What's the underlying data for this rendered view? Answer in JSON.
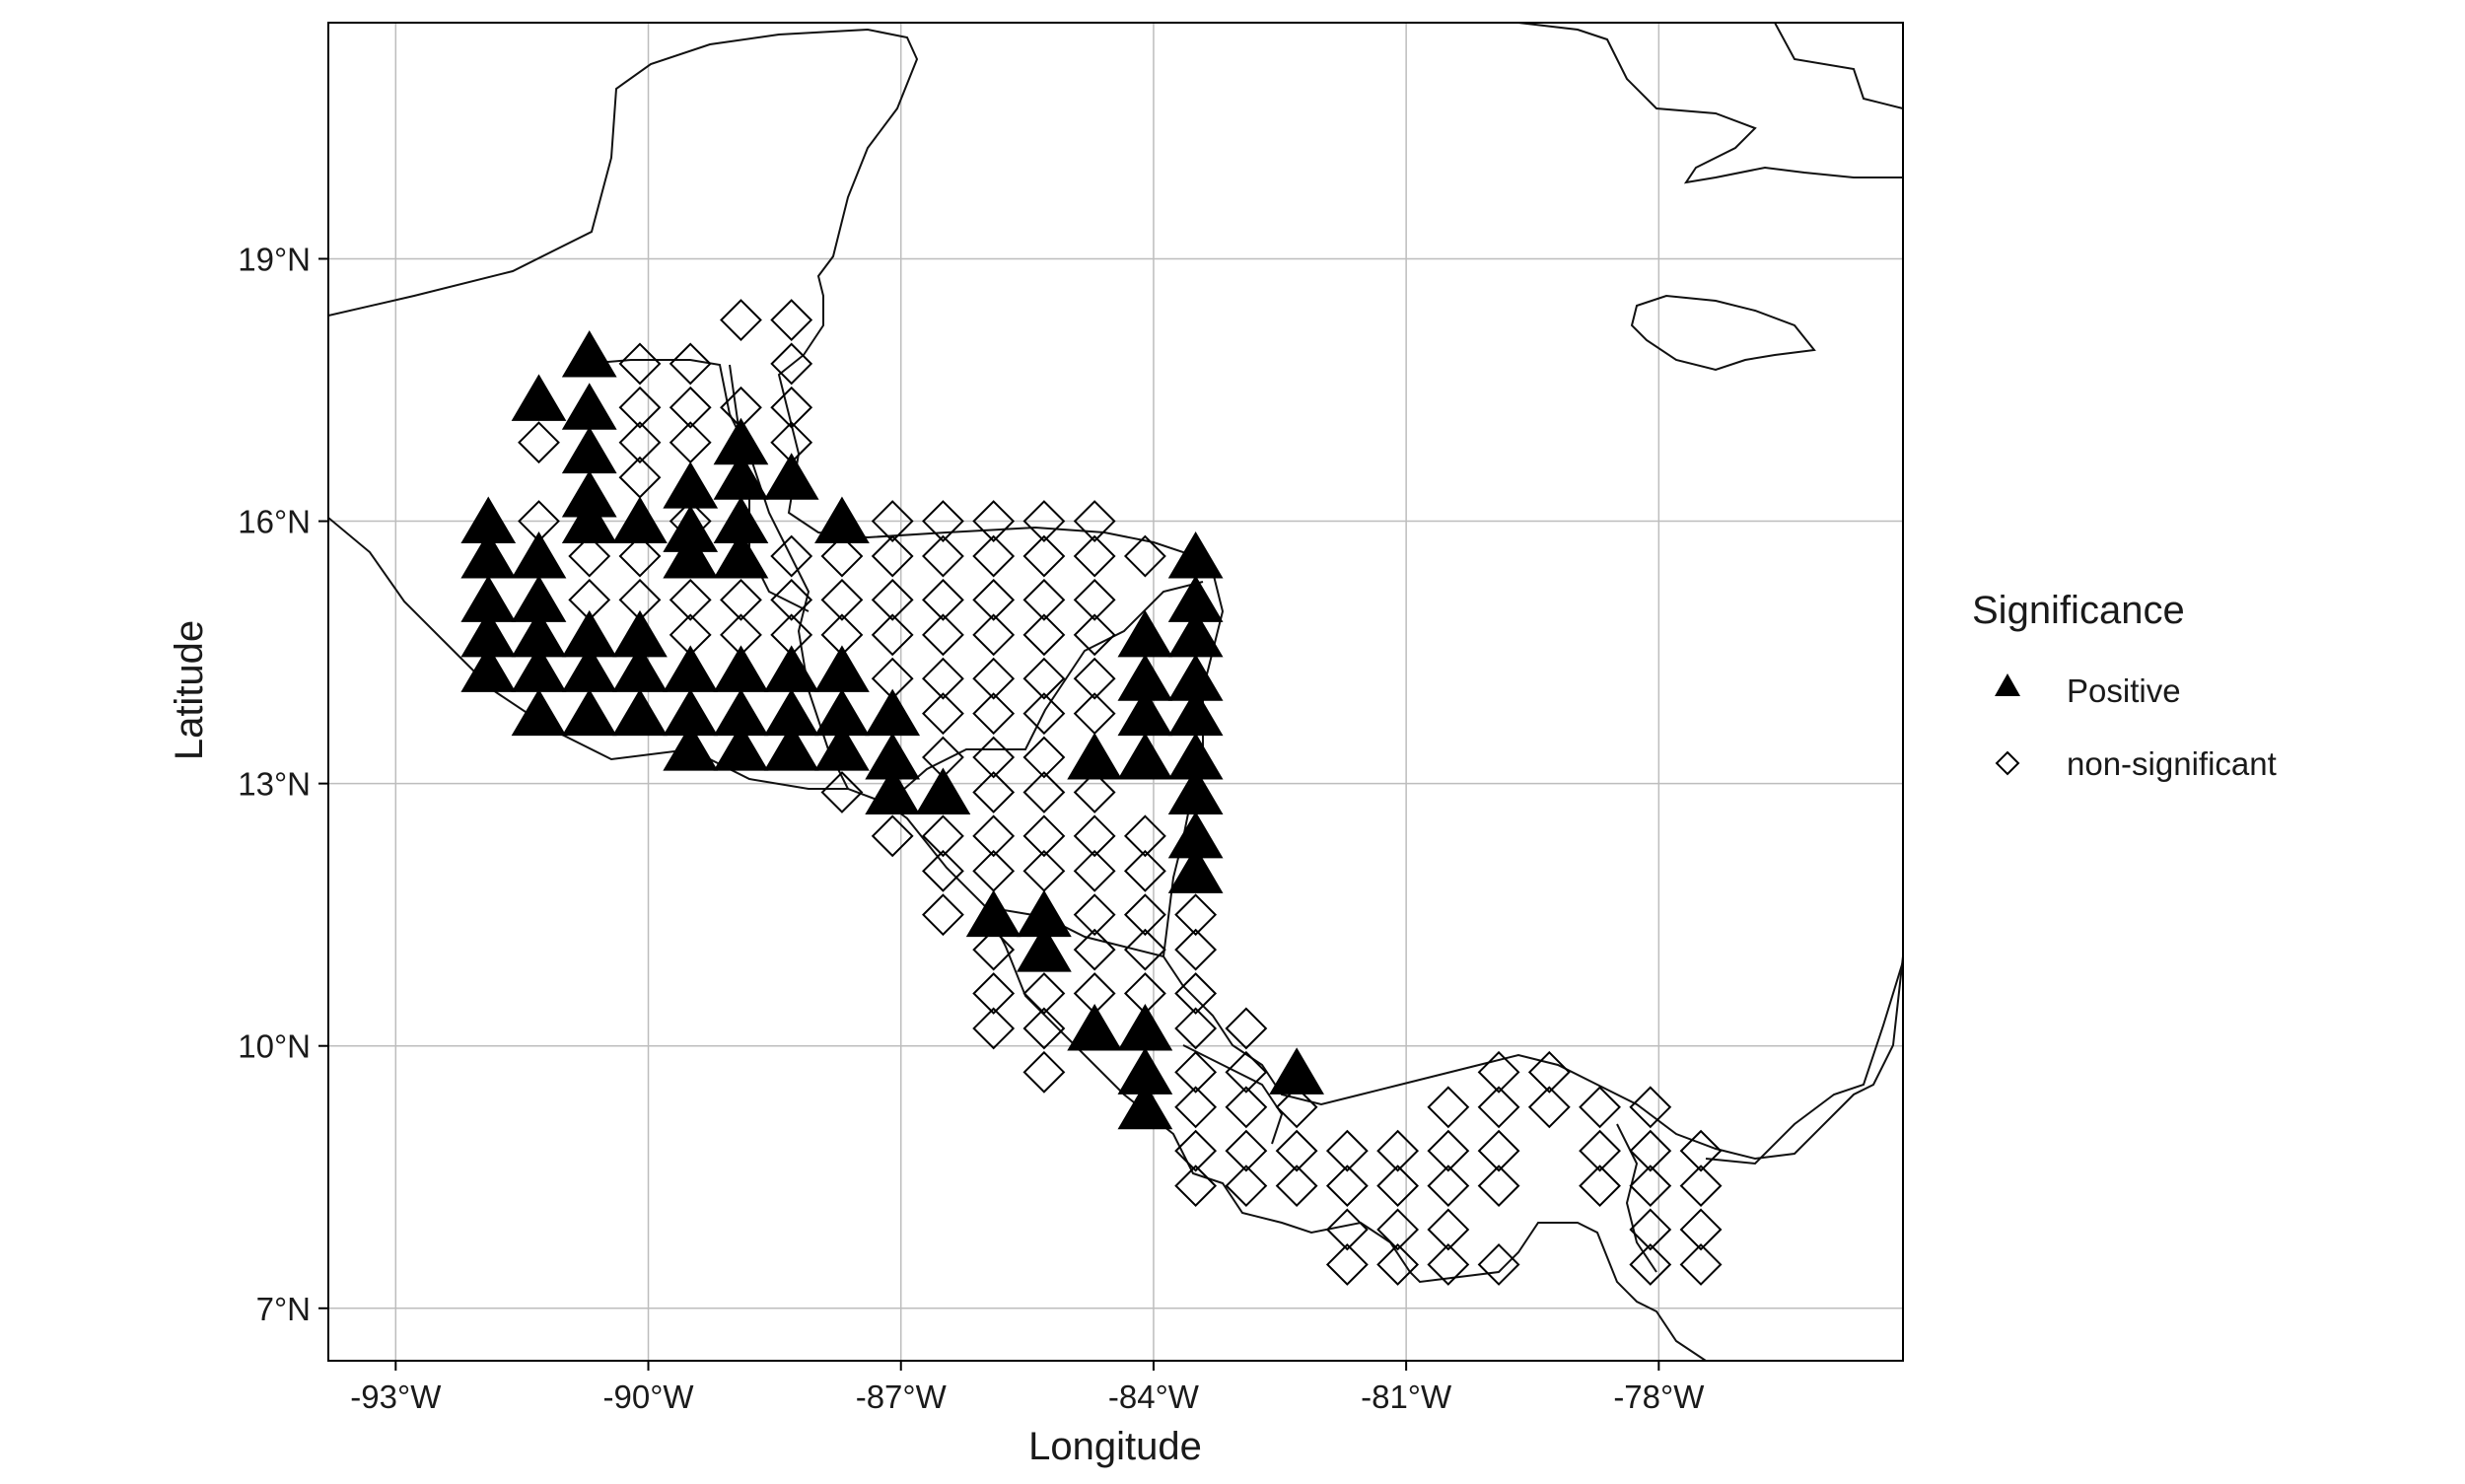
{
  "map": {
    "xlabel": "Longitude",
    "ylabel": "Latitude",
    "x_ticks": [
      {
        "value": -93,
        "label": "-93°W"
      },
      {
        "value": -90,
        "label": "-90°W"
      },
      {
        "value": -87,
        "label": "-87°W"
      },
      {
        "value": -84,
        "label": "-84°W"
      },
      {
        "value": -81,
        "label": "-81°W"
      },
      {
        "value": -78,
        "label": "-78°W"
      }
    ],
    "y_ticks": [
      {
        "value": 7,
        "label": "7°N"
      },
      {
        "value": 10,
        "label": "10°N"
      },
      {
        "value": 13,
        "label": "13°N"
      },
      {
        "value": 16,
        "label": "16°N"
      },
      {
        "value": 19,
        "label": "19°N"
      }
    ],
    "xlim": [
      -93.8,
      -75.1
    ],
    "ylim": [
      6.4,
      21.7
    ],
    "grid": true
  },
  "legend": {
    "title": "Significance",
    "items": [
      {
        "label": "Positive",
        "shape": "filled-triangle"
      },
      {
        "label": "non-significant",
        "shape": "open-diamond"
      }
    ],
    "placement": "right"
  },
  "chart_data": {
    "type": "scatter",
    "xlabel": "Longitude",
    "ylabel": "Latitude",
    "xlim": [
      -93.8,
      -75.1
    ],
    "ylim": [
      6.4,
      21.7
    ],
    "grid": true,
    "legend_placement": "right",
    "series": [
      {
        "name": "Positive",
        "marker": "filled-triangle",
        "points": [
          [
            -91.3,
            17.4
          ],
          [
            -90.7,
            17.9
          ],
          [
            -90.7,
            17.3
          ],
          [
            -90.7,
            16.8
          ],
          [
            -90.7,
            16.3
          ],
          [
            -90.7,
            16.0
          ],
          [
            -90.1,
            16.0
          ],
          [
            -89.5,
            16.4
          ],
          [
            -89.5,
            15.9
          ],
          [
            -89.5,
            15.6
          ],
          [
            -88.9,
            16.9
          ],
          [
            -88.9,
            16.5
          ],
          [
            -88.9,
            16.0
          ],
          [
            -88.9,
            15.6
          ],
          [
            -88.3,
            16.5
          ],
          [
            -87.7,
            16.0
          ],
          [
            -91.9,
            16.0
          ],
          [
            -91.9,
            15.6
          ],
          [
            -91.9,
            15.1
          ],
          [
            -91.9,
            14.7
          ],
          [
            -91.9,
            14.3
          ],
          [
            -91.3,
            15.6
          ],
          [
            -91.3,
            15.1
          ],
          [
            -91.3,
            14.7
          ],
          [
            -91.3,
            14.3
          ],
          [
            -91.3,
            13.8
          ],
          [
            -90.7,
            14.7
          ],
          [
            -90.7,
            14.3
          ],
          [
            -90.7,
            13.8
          ],
          [
            -90.1,
            14.7
          ],
          [
            -90.1,
            14.3
          ],
          [
            -90.1,
            13.8
          ],
          [
            -89.5,
            14.3
          ],
          [
            -89.5,
            13.8
          ],
          [
            -89.5,
            13.4
          ],
          [
            -88.9,
            14.3
          ],
          [
            -88.9,
            13.8
          ],
          [
            -88.9,
            13.4
          ],
          [
            -88.3,
            14.3
          ],
          [
            -88.3,
            13.8
          ],
          [
            -88.3,
            13.4
          ],
          [
            -87.7,
            14.3
          ],
          [
            -87.7,
            13.8
          ],
          [
            -87.7,
            13.4
          ],
          [
            -87.1,
            13.8
          ],
          [
            -87.1,
            13.3
          ],
          [
            -87.1,
            12.9
          ],
          [
            -86.5,
            12.9
          ],
          [
            -84.7,
            13.3
          ],
          [
            -84.1,
            14.7
          ],
          [
            -84.1,
            14.2
          ],
          [
            -84.1,
            13.8
          ],
          [
            -84.1,
            13.3
          ],
          [
            -83.5,
            15.6
          ],
          [
            -83.5,
            15.1
          ],
          [
            -83.5,
            14.7
          ],
          [
            -83.5,
            14.2
          ],
          [
            -83.5,
            13.8
          ],
          [
            -83.5,
            13.3
          ],
          [
            -83.5,
            12.9
          ],
          [
            -83.5,
            12.4
          ],
          [
            -83.5,
            12.0
          ],
          [
            -85.9,
            11.5
          ],
          [
            -85.3,
            11.5
          ],
          [
            -85.3,
            11.1
          ],
          [
            -84.7,
            10.2
          ],
          [
            -84.1,
            10.2
          ],
          [
            -84.1,
            9.7
          ],
          [
            -84.1,
            9.3
          ],
          [
            -82.3,
            9.7
          ]
        ]
      },
      {
        "name": "non-significant",
        "marker": "open-diamond",
        "points": [
          [
            -91.3,
            16.9
          ],
          [
            -90.1,
            17.8
          ],
          [
            -89.5,
            17.8
          ],
          [
            -88.9,
            18.3
          ],
          [
            -88.3,
            18.3
          ],
          [
            -90.1,
            17.3
          ],
          [
            -89.5,
            17.3
          ],
          [
            -88.9,
            17.3
          ],
          [
            -88.3,
            17.3
          ],
          [
            -88.3,
            17.8
          ],
          [
            -90.1,
            16.9
          ],
          [
            -89.5,
            16.9
          ],
          [
            -88.3,
            16.9
          ],
          [
            -90.1,
            16.5
          ],
          [
            -89.5,
            16.0
          ],
          [
            -91.3,
            16.0
          ],
          [
            -90.7,
            15.6
          ],
          [
            -90.1,
            15.6
          ],
          [
            -90.7,
            15.1
          ],
          [
            -90.1,
            15.1
          ],
          [
            -89.5,
            15.1
          ],
          [
            -88.9,
            15.1
          ],
          [
            -88.3,
            15.6
          ],
          [
            -88.3,
            15.1
          ],
          [
            -87.7,
            15.6
          ],
          [
            -87.7,
            15.1
          ],
          [
            -87.7,
            14.7
          ],
          [
            -89.5,
            14.7
          ],
          [
            -88.9,
            14.7
          ],
          [
            -88.3,
            14.7
          ],
          [
            -87.1,
            16.0
          ],
          [
            -86.5,
            16.0
          ],
          [
            -85.9,
            16.0
          ],
          [
            -85.3,
            16.0
          ],
          [
            -84.7,
            16.0
          ],
          [
            -87.1,
            15.6
          ],
          [
            -86.5,
            15.6
          ],
          [
            -85.9,
            15.6
          ],
          [
            -85.3,
            15.6
          ],
          [
            -84.7,
            15.6
          ],
          [
            -84.1,
            15.6
          ],
          [
            -87.1,
            15.1
          ],
          [
            -86.5,
            15.1
          ],
          [
            -85.9,
            15.1
          ],
          [
            -85.3,
            15.1
          ],
          [
            -84.7,
            15.1
          ],
          [
            -87.1,
            14.7
          ],
          [
            -86.5,
            14.7
          ],
          [
            -85.9,
            14.7
          ],
          [
            -85.3,
            14.7
          ],
          [
            -84.7,
            14.7
          ],
          [
            -87.1,
            14.2
          ],
          [
            -86.5,
            14.2
          ],
          [
            -85.9,
            14.2
          ],
          [
            -85.3,
            14.2
          ],
          [
            -84.7,
            14.2
          ],
          [
            -86.5,
            13.8
          ],
          [
            -85.9,
            13.8
          ],
          [
            -85.3,
            13.8
          ],
          [
            -84.7,
            13.8
          ],
          [
            -86.5,
            13.3
          ],
          [
            -85.9,
            13.3
          ],
          [
            -85.3,
            13.3
          ],
          [
            -87.7,
            12.9
          ],
          [
            -85.9,
            12.9
          ],
          [
            -85.3,
            12.9
          ],
          [
            -84.7,
            12.9
          ],
          [
            -87.1,
            12.4
          ],
          [
            -86.5,
            12.4
          ],
          [
            -85.9,
            12.4
          ],
          [
            -85.3,
            12.4
          ],
          [
            -84.7,
            12.4
          ],
          [
            -84.1,
            12.4
          ],
          [
            -86.5,
            12.0
          ],
          [
            -85.9,
            12.0
          ],
          [
            -85.3,
            12.0
          ],
          [
            -84.7,
            12.0
          ],
          [
            -84.1,
            12.0
          ],
          [
            -86.5,
            11.5
          ],
          [
            -84.7,
            11.5
          ],
          [
            -84.1,
            11.5
          ],
          [
            -83.5,
            11.5
          ],
          [
            -85.9,
            11.1
          ],
          [
            -84.7,
            11.1
          ],
          [
            -84.1,
            11.1
          ],
          [
            -83.5,
            11.1
          ],
          [
            -85.9,
            10.6
          ],
          [
            -85.3,
            10.6
          ],
          [
            -84.7,
            10.6
          ],
          [
            -84.1,
            10.6
          ],
          [
            -83.5,
            10.6
          ],
          [
            -85.9,
            10.2
          ],
          [
            -85.3,
            10.2
          ],
          [
            -83.5,
            10.2
          ],
          [
            -82.9,
            10.2
          ],
          [
            -85.3,
            9.7
          ],
          [
            -83.5,
            9.7
          ],
          [
            -82.9,
            9.7
          ],
          [
            -83.5,
            9.3
          ],
          [
            -82.9,
            9.3
          ],
          [
            -82.3,
            9.3
          ],
          [
            -83.5,
            8.8
          ],
          [
            -82.9,
            8.8
          ],
          [
            -82.3,
            8.8
          ],
          [
            -81.7,
            8.8
          ],
          [
            -81.1,
            8.8
          ],
          [
            -83.5,
            8.4
          ],
          [
            -82.9,
            8.4
          ],
          [
            -82.3,
            8.4
          ],
          [
            -81.7,
            8.4
          ],
          [
            -81.1,
            8.4
          ],
          [
            -80.5,
            9.3
          ],
          [
            -80.5,
            8.8
          ],
          [
            -80.5,
            8.4
          ],
          [
            -79.9,
            9.7
          ],
          [
            -79.9,
            9.3
          ],
          [
            -79.9,
            8.8
          ],
          [
            -79.9,
            8.4
          ],
          [
            -79.3,
            9.7
          ],
          [
            -79.3,
            9.3
          ],
          [
            -78.7,
            9.3
          ],
          [
            -78.7,
            8.8
          ],
          [
            -78.7,
            8.4
          ],
          [
            -78.1,
            9.3
          ],
          [
            -78.1,
            8.8
          ],
          [
            -78.1,
            8.4
          ],
          [
            -78.1,
            7.9
          ],
          [
            -77.5,
            8.8
          ],
          [
            -77.5,
            8.4
          ],
          [
            -77.5,
            7.9
          ],
          [
            -81.7,
            7.9
          ],
          [
            -81.1,
            7.9
          ],
          [
            -80.5,
            7.9
          ],
          [
            -81.7,
            7.5
          ],
          [
            -81.1,
            7.5
          ],
          [
            -80.5,
            7.5
          ],
          [
            -79.9,
            7.5
          ],
          [
            -78.1,
            7.5
          ],
          [
            -77.5,
            7.5
          ]
        ]
      }
    ]
  }
}
